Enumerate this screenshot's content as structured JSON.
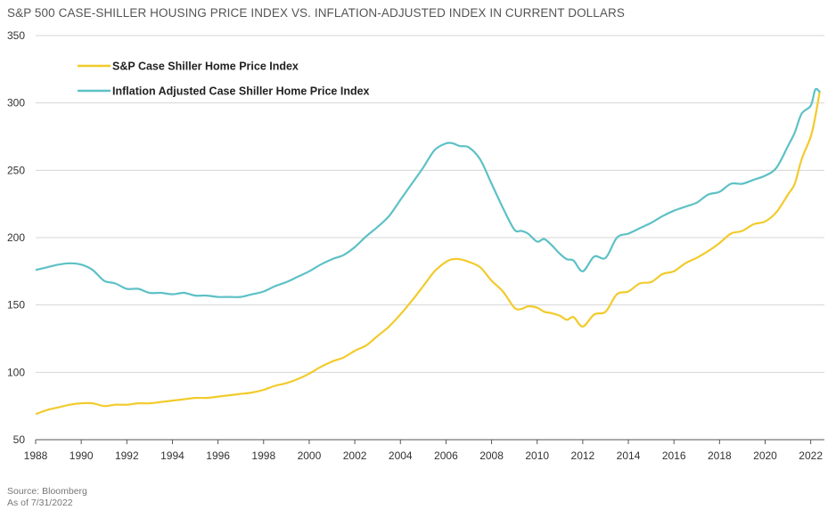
{
  "title": "S&P 500 CASE-SHILLER HOUSING PRICE INDEX VS. INFLATION-ADJUSTED INDEX IN CURRENT DOLLARS",
  "footer": {
    "source": "Source: Bloomberg",
    "as_of": "As of 7/31/2022"
  },
  "chart_data": {
    "type": "line",
    "title": "S&P 500 CASE-SHILLER HOUSING PRICE INDEX VS. INFLATION-ADJUSTED INDEX IN CURRENT DOLLARS",
    "xlabel": "",
    "ylabel": "",
    "xlim": [
      1988,
      2022.6
    ],
    "ylim": [
      50,
      350
    ],
    "xticks": [
      1988,
      1990,
      1992,
      1994,
      1996,
      1998,
      2000,
      2002,
      2004,
      2006,
      2008,
      2010,
      2012,
      2014,
      2016,
      2018,
      2020,
      2022
    ],
    "yticks": [
      50,
      100,
      150,
      200,
      250,
      300,
      350
    ],
    "grid": "horizontal",
    "legend_position": "top-left",
    "series": [
      {
        "name": "S&P Case Shiller Home Price Index",
        "color": "#F2CB2C",
        "x": [
          1988,
          1988.5,
          1989,
          1989.5,
          1990,
          1990.5,
          1991,
          1991.5,
          1992,
          1992.5,
          1993,
          1993.5,
          1994,
          1994.5,
          1995,
          1995.5,
          1996,
          1996.5,
          1997,
          1997.5,
          1998,
          1998.5,
          1999,
          1999.5,
          2000,
          2000.5,
          2001,
          2001.5,
          2002,
          2002.5,
          2003,
          2003.5,
          2004,
          2004.5,
          2005,
          2005.5,
          2006,
          2006.3,
          2006.6,
          2007,
          2007.5,
          2008,
          2008.5,
          2009,
          2009.3,
          2009.6,
          2010,
          2010.3,
          2010.6,
          2011,
          2011.3,
          2011.6,
          2012,
          2012.5,
          2013,
          2013.5,
          2014,
          2014.5,
          2015,
          2015.5,
          2016,
          2016.5,
          2017,
          2017.5,
          2018,
          2018.5,
          2019,
          2019.5,
          2020,
          2020.5,
          2021,
          2021.3,
          2021.6,
          2022,
          2022.2,
          2022.4
        ],
        "values": [
          69,
          72,
          74,
          76,
          77,
          77,
          75,
          76,
          76,
          77,
          77,
          78,
          79,
          80,
          81,
          81,
          82,
          83,
          84,
          85,
          87,
          90,
          92,
          95,
          99,
          104,
          108,
          111,
          116,
          120,
          127,
          134,
          143,
          153,
          164,
          175,
          182,
          184,
          184,
          182,
          178,
          168,
          160,
          148,
          147,
          149,
          148,
          145,
          144,
          142,
          139,
          141,
          134,
          143,
          145,
          158,
          160,
          166,
          167,
          173,
          175,
          181,
          185,
          190,
          196,
          203,
          205,
          210,
          212,
          219,
          232,
          240,
          258,
          275,
          290,
          309
        ]
      },
      {
        "name": "Inflation Adjusted Case Shiller Home Price Index",
        "color": "#5DC1C6",
        "x": [
          1988,
          1988.5,
          1989,
          1989.5,
          1990,
          1990.5,
          1991,
          1991.5,
          1992,
          1992.5,
          1993,
          1993.5,
          1994,
          1994.5,
          1995,
          1995.5,
          1996,
          1996.5,
          1997,
          1997.5,
          1998,
          1998.5,
          1999,
          1999.5,
          2000,
          2000.5,
          2001,
          2001.5,
          2002,
          2002.5,
          2003,
          2003.5,
          2004,
          2004.5,
          2005,
          2005.5,
          2006,
          2006.3,
          2006.6,
          2007,
          2007.5,
          2008,
          2008.5,
          2009,
          2009.3,
          2009.6,
          2010,
          2010.3,
          2010.6,
          2011,
          2011.3,
          2011.6,
          2012,
          2012.5,
          2013,
          2013.5,
          2014,
          2014.5,
          2015,
          2015.5,
          2016,
          2016.5,
          2017,
          2017.5,
          2018,
          2018.5,
          2019,
          2019.5,
          2020,
          2020.5,
          2021,
          2021.3,
          2021.6,
          2022,
          2022.2,
          2022.4
        ],
        "values": [
          176,
          178,
          180,
          181,
          180,
          176,
          168,
          166,
          162,
          162,
          159,
          159,
          158,
          159,
          157,
          157,
          156,
          156,
          156,
          158,
          160,
          164,
          167,
          171,
          175,
          180,
          184,
          187,
          193,
          201,
          208,
          216,
          228,
          240,
          252,
          265,
          270,
          270,
          268,
          267,
          258,
          240,
          222,
          206,
          205,
          203,
          197,
          199,
          195,
          188,
          184,
          183,
          175,
          186,
          185,
          200,
          203,
          207,
          211,
          216,
          220,
          223,
          226,
          232,
          234,
          240,
          240,
          243,
          246,
          252,
          268,
          278,
          292,
          298,
          310,
          308
        ]
      }
    ]
  }
}
